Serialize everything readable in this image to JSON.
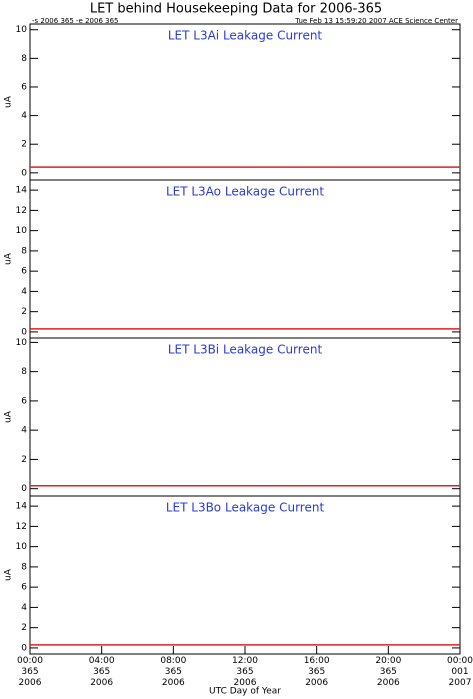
{
  "header": {
    "title": "LET behind Housekeeping Data for 2006-365",
    "left_note": "-s 2006 365  -e 2006 365",
    "right_note": "Tue Feb 13 15:59:20 2007 ACE Science Center"
  },
  "chart_data": [
    {
      "type": "line",
      "title": "LET L3Ai Leakage Current",
      "y_label": "uA",
      "x": [
        0,
        24
      ],
      "series": [
        {
          "name": "L3Ai",
          "color": "#e02020",
          "values": [
            0.4,
            0.4
          ]
        }
      ],
      "xlim": [
        0,
        24
      ],
      "ylim": [
        -0.5,
        10.4
      ],
      "yticks": [
        0,
        2,
        4,
        6,
        8,
        10
      ]
    },
    {
      "type": "line",
      "title": "LET L3Ao Leakage Current",
      "y_label": "uA",
      "x": [
        0,
        24
      ],
      "series": [
        {
          "name": "L3Ao",
          "color": "#e02020",
          "values": [
            0.3,
            0.3
          ]
        }
      ],
      "xlim": [
        0,
        24
      ],
      "ylim": [
        -0.6,
        15
      ],
      "yticks": [
        0,
        2,
        4,
        6,
        8,
        10,
        12,
        14
      ]
    },
    {
      "type": "line",
      "title": "LET L3Bi Leakage Current",
      "y_label": "uA",
      "x": [
        0,
        24
      ],
      "series": [
        {
          "name": "L3Bi",
          "color": "#e02020",
          "values": [
            0.2,
            0.2
          ]
        }
      ],
      "xlim": [
        0,
        24
      ],
      "ylim": [
        -0.5,
        10.3
      ],
      "yticks": [
        0,
        2,
        4,
        6,
        8,
        10
      ]
    },
    {
      "type": "line",
      "title": "LET L3Bo Leakage Current",
      "y_label": "uA",
      "x": [
        0,
        24
      ],
      "series": [
        {
          "name": "L3Bo",
          "color": "#e02020",
          "values": [
            0.3,
            0.3
          ]
        }
      ],
      "xlim": [
        0,
        24
      ],
      "ylim": [
        -0.6,
        15
      ],
      "yticks": [
        0,
        2,
        4,
        6,
        8,
        10,
        12,
        14
      ],
      "x_label": "UTC Day of Year",
      "xticks": [
        {
          "value": 0,
          "label": "00:00\n365\n2006"
        },
        {
          "value": 4,
          "label": "04:00\n365\n2006"
        },
        {
          "value": 8,
          "label": "08:00\n365\n2006"
        },
        {
          "value": 12,
          "label": "12:00\n365\n2006"
        },
        {
          "value": 16,
          "label": "16:00\n365\n2006"
        },
        {
          "value": 20,
          "label": "20:00\n365\n2006"
        },
        {
          "value": 24,
          "label": "00:00\n001\n2007"
        }
      ]
    }
  ]
}
